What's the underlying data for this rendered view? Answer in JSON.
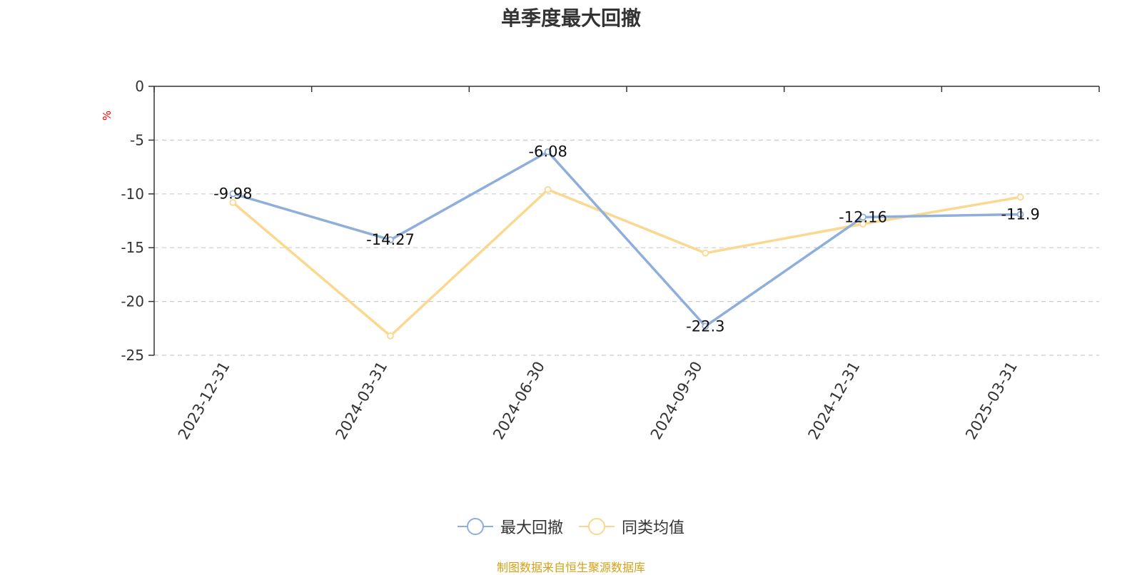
{
  "chart_data": {
    "type": "line",
    "title": "单季度最大回撤",
    "ylabel": "%",
    "xlabel": "",
    "categories": [
      "2023-12-31",
      "2024-03-31",
      "2024-06-30",
      "2024-09-30",
      "2024-12-31",
      "2025-03-31"
    ],
    "y_ticks": [
      0,
      -5,
      -10,
      -15,
      -20,
      -25
    ],
    "ylim": [
      -25,
      0
    ],
    "grid": true,
    "legend_position": "bottom",
    "series": [
      {
        "name": "最大回撤",
        "color": "#8eaedb",
        "values": [
          -9.98,
          -14.27,
          -6.08,
          -22.3,
          -12.16,
          -11.9
        ],
        "labels": [
          "-9.98",
          "-14.27",
          "-6.08",
          "-22.3",
          "-12.16",
          "-11.9"
        ]
      },
      {
        "name": "同类均值",
        "color": "#fbd88f",
        "values": [
          -10.8,
          -23.2,
          -9.6,
          -15.5,
          -12.8,
          -10.3
        ]
      }
    ]
  },
  "source_text": "制图数据来自恒生聚源数据库"
}
